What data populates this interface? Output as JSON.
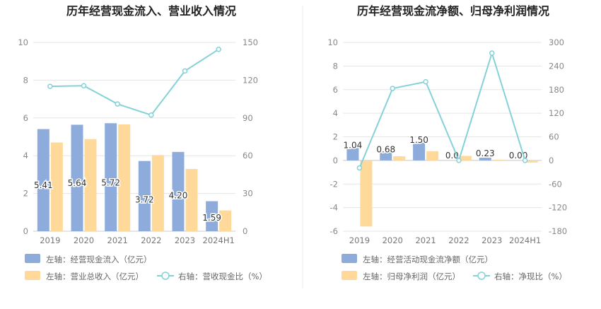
{
  "colors": {
    "bar_primary": "#8eacdb",
    "bar_secondary": "#fed99a",
    "line": "#84d2d8",
    "grid": "#e5e5e5",
    "divider": "#eeeeee"
  },
  "chart_data": [
    {
      "type": "bar",
      "title": "历年经营现金流入、营业收入情况",
      "categories": [
        "2019",
        "2020",
        "2021",
        "2022",
        "2023",
        "2024H1"
      ],
      "series": [
        {
          "name": "左轴：经营现金流入（亿元）",
          "axis": "left",
          "kind": "bar",
          "values": [
            5.41,
            5.64,
            5.72,
            3.72,
            4.2,
            1.59
          ]
        },
        {
          "name": "左轴：营业总收入（亿元）",
          "axis": "left",
          "kind": "bar",
          "values": [
            4.7,
            4.88,
            5.66,
            4.03,
            3.3,
            1.1
          ]
        },
        {
          "name": "右轴：营收现金比（%）",
          "axis": "right",
          "kind": "line",
          "values": [
            115.1,
            115.6,
            101.1,
            92.3,
            127.3,
            144.5
          ]
        }
      ],
      "data_labels": [
        "5.41",
        "5.64",
        "5.72",
        "3.72",
        "4.20",
        "1.59"
      ],
      "left_axis": {
        "ticks": [
          "0",
          "2",
          "4",
          "6",
          "8",
          "10"
        ],
        "ylim": [
          0,
          10
        ]
      },
      "right_axis": {
        "ticks": [
          "0",
          "30",
          "60",
          "90",
          "120",
          "150"
        ],
        "ylim": [
          0,
          150
        ]
      },
      "grid": true,
      "legend_position": "bottom-left"
    },
    {
      "type": "bar",
      "title": "历年经营现金流净额、归母净利润情况",
      "categories": [
        "2019",
        "2020",
        "2021",
        "2022",
        "2023",
        "2024H1"
      ],
      "series": [
        {
          "name": "左轴：经营活动现金流净额（亿元）",
          "axis": "left",
          "kind": "bar",
          "values": [
            1.04,
            0.68,
            1.5,
            0.0,
            0.23,
            0.0
          ]
        },
        {
          "name": "左轴：归母净利润（亿元）",
          "axis": "left",
          "kind": "bar",
          "values": [
            -5.6,
            0.35,
            0.78,
            0.38,
            0.05,
            -0.18
          ]
        },
        {
          "name": "右轴：净现比（%）",
          "axis": "right",
          "kind": "line",
          "values": [
            -19,
            183,
            200,
            0,
            273,
            0
          ]
        }
      ],
      "data_labels": [
        "1.04",
        "0.68",
        "1.50",
        "0.0",
        "0.23",
        "0.00"
      ],
      "left_axis": {
        "ticks": [
          "-6",
          "-4",
          "-2",
          "0",
          "2",
          "4",
          "6",
          "8",
          "10"
        ],
        "ylim": [
          -6,
          10
        ]
      },
      "right_axis": {
        "ticks": [
          "-180",
          "-120",
          "-60",
          "0",
          "60",
          "120",
          "180",
          "240",
          "300"
        ],
        "ylim": [
          -180,
          300
        ]
      },
      "grid": true,
      "legend_position": "bottom-left"
    }
  ]
}
